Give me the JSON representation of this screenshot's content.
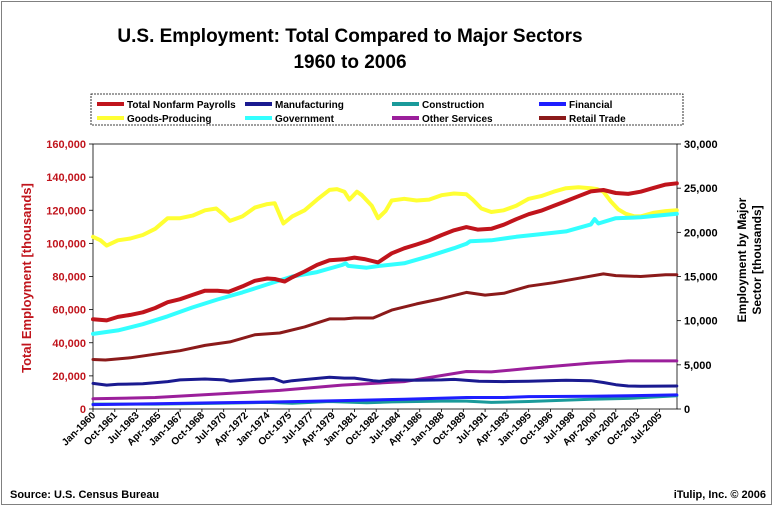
{
  "chart_data": {
    "type": "line",
    "title_line1": "U.S. Employment: Total Compared to Major Sectors",
    "title_line2": "1960 to 2006",
    "ylabel_left": "Total Employment [thousands]",
    "ylabel_right_line1": "Employment by Major",
    "ylabel_right_line2": "Sector [thousands]",
    "ylim_left": [
      0,
      160000
    ],
    "ylim_right": [
      0,
      30000
    ],
    "yticks_left": [
      "0",
      "20,000",
      "40,000",
      "60,000",
      "80,000",
      "100,000",
      "120,000",
      "140,000",
      "160,000"
    ],
    "yticks_right": [
      "0",
      "5,000",
      "10,000",
      "15,000",
      "20,000",
      "25,000",
      "30,000"
    ],
    "x_range": [
      "1960-01",
      "2006-12"
    ],
    "x_tick_labels": [
      "Jan-1960",
      "Oct-1961",
      "Jul-1963",
      "Apr-1965",
      "Jan-1967",
      "Oct-1968",
      "Jul-1970",
      "Apr-1972",
      "Jan-1974",
      "Oct-1975",
      "Jul-1977",
      "Apr-1979",
      "Jan-1981",
      "Oct-1982",
      "Jul-1984",
      "Apr-1986",
      "Jan-1988",
      "Oct-1989",
      "Jul-1991",
      "Apr-1993",
      "Jan-1995",
      "Oct-1996",
      "Jul-1998",
      "Apr-2000",
      "Jan-2002",
      "Oct-2003",
      "Jul-2005"
    ],
    "legend_placement": "top",
    "grid": false,
    "source": "Source: U.S. Census Bureau",
    "credit": "iTulip, Inc. © 2006",
    "series": [
      {
        "name": "Total Nonfarm Payrolls",
        "axis": "left",
        "color": "#c0141c",
        "width": 4,
        "x": [
          1960.0,
          1961.1,
          1962.0,
          1963.0,
          1964.0,
          1965.0,
          1966.0,
          1967.0,
          1968.0,
          1969.0,
          1970.0,
          1970.9,
          1972.0,
          1973.0,
          1974.0,
          1974.6,
          1975.4,
          1976.0,
          1977.0,
          1978.0,
          1979.0,
          1980.2,
          1981.0,
          1981.8,
          1982.9,
          1984.0,
          1985.0,
          1986.0,
          1987.0,
          1988.0,
          1989.0,
          1990.0,
          1990.9,
          1992.0,
          1993.0,
          1994.0,
          1995.0,
          1996.0,
          1997.0,
          1998.0,
          1999.0,
          2000.0,
          2001.0,
          2002.0,
          2003.0,
          2004.0,
          2005.0,
          2006.0,
          2006.9
        ],
        "y": [
          54200,
          53500,
          55600,
          56800,
          58400,
          61000,
          64500,
          66300,
          68900,
          71400,
          71400,
          70800,
          74000,
          77400,
          78800,
          78500,
          77000,
          79500,
          83000,
          87000,
          89800,
          90400,
          91400,
          90500,
          88500,
          94000,
          97000,
          99300,
          101800,
          105000,
          107900,
          109800,
          108300,
          108800,
          111300,
          114600,
          117600,
          119700,
          122600,
          125500,
          128500,
          131400,
          132200,
          130400,
          129900,
          131200,
          133400,
          135500,
          136300
        ]
      },
      {
        "name": "Goods-Producing",
        "axis": "right",
        "color": "#ffff33",
        "width": 4,
        "x": [
          1960.0,
          1960.6,
          1961.1,
          1962.0,
          1963.0,
          1964.0,
          1965.0,
          1966.0,
          1967.0,
          1968.0,
          1969.0,
          1969.9,
          1970.5,
          1971.0,
          1972.0,
          1973.0,
          1974.0,
          1974.6,
          1975.3,
          1976.0,
          1977.0,
          1978.0,
          1979.0,
          1979.6,
          1980.2,
          1980.6,
          1981.2,
          1981.6,
          1982.4,
          1982.9,
          1983.5,
          1984.0,
          1985.0,
          1986.0,
          1987.0,
          1988.0,
          1989.0,
          1990.0,
          1990.5,
          1991.2,
          1992.0,
          1993.0,
          1994.0,
          1995.0,
          1996.0,
          1997.0,
          1998.0,
          1999.0,
          2000.0,
          2000.5,
          2001.0,
          2001.6,
          2002.2,
          2002.8,
          2003.5,
          2004.0,
          2005.0,
          2006.0,
          2006.9
        ],
        "y": [
          19500,
          19100,
          18500,
          19100,
          19300,
          19700,
          20400,
          21600,
          21600,
          21900,
          22500,
          22700,
          22000,
          21300,
          21800,
          22800,
          23200,
          23300,
          21000,
          21800,
          22500,
          23700,
          24800,
          24900,
          24600,
          23700,
          24600,
          24200,
          23000,
          21600,
          22400,
          23600,
          23800,
          23600,
          23700,
          24200,
          24400,
          24300,
          23700,
          22700,
          22300,
          22500,
          23000,
          23800,
          24100,
          24600,
          25000,
          25100,
          25000,
          24900,
          24600,
          23500,
          22600,
          22100,
          21800,
          21800,
          22200,
          22400,
          22500
        ]
      },
      {
        "name": "Manufacturing",
        "axis": "right",
        "color": "#1a1a90",
        "width": 3,
        "x": [
          1960.0,
          1961.1,
          1962.0,
          1964.0,
          1966.0,
          1967.0,
          1969.0,
          1970.5,
          1971.0,
          1973.0,
          1974.5,
          1975.3,
          1976.0,
          1979.0,
          1980.2,
          1981.0,
          1982.5,
          1983.0,
          1984.0,
          1986.0,
          1988.0,
          1989.0,
          1991.0,
          1993.0,
          1995.0,
          1998.0,
          2000.0,
          2001.0,
          2002.0,
          2003.0,
          2004.0,
          2006.9
        ],
        "y": [
          2900,
          2700,
          2800,
          2850,
          3100,
          3300,
          3400,
          3300,
          3150,
          3350,
          3450,
          3050,
          3200,
          3600,
          3500,
          3500,
          3200,
          3150,
          3300,
          3250,
          3300,
          3350,
          3150,
          3100,
          3150,
          3250,
          3200,
          3000,
          2750,
          2600,
          2580,
          2600
        ]
      },
      {
        "name": "Government",
        "axis": "right",
        "color": "#33ffff",
        "width": 4,
        "x": [
          1960.0,
          1962.0,
          1964.0,
          1966.0,
          1968.0,
          1970.0,
          1972.0,
          1974.0,
          1976.0,
          1978.0,
          1980.0,
          1980.3,
          1980.5,
          1982.0,
          1983.0,
          1985.0,
          1987.0,
          1989.0,
          1990.0,
          1990.3,
          1992.0,
          1994.0,
          1996.0,
          1998.0,
          1999.5,
          2000.0,
          2000.3,
          2000.6,
          2002.0,
          2004.0,
          2006.9
        ],
        "y": [
          8500,
          8900,
          9600,
          10500,
          11500,
          12400,
          13200,
          14100,
          15000,
          15500,
          16300,
          16500,
          16200,
          16000,
          16200,
          16500,
          17300,
          18200,
          18700,
          19000,
          19100,
          19500,
          19800,
          20100,
          20700,
          20900,
          21500,
          21000,
          21600,
          21700,
          22100
        ]
      },
      {
        "name": "Retail Trade",
        "axis": "right",
        "color": "#8b1a1a",
        "width": 3,
        "x": [
          1960.0,
          1961.0,
          1963.0,
          1965.0,
          1967.0,
          1969.0,
          1971.0,
          1973.0,
          1975.0,
          1977.0,
          1979.0,
          1980.2,
          1981.0,
          1982.5,
          1984.0,
          1986.0,
          1988.0,
          1990.0,
          1991.5,
          1993.0,
          1995.0,
          1997.0,
          1999.0,
          2001.0,
          2002.0,
          2004.0,
          2006.0,
          2006.9
        ],
        "y": [
          5600,
          5550,
          5800,
          6200,
          6600,
          7200,
          7600,
          8400,
          8600,
          9300,
          10200,
          10200,
          10300,
          10300,
          11200,
          11900,
          12500,
          13200,
          12900,
          13100,
          13900,
          14300,
          14800,
          15300,
          15100,
          15000,
          15200,
          15200
        ]
      },
      {
        "name": "Other Services",
        "axis": "right",
        "color": "#9b1f9b",
        "width": 3,
        "x": [
          1960.0,
          1965.0,
          1970.0,
          1975.0,
          1980.0,
          1985.0,
          1990.0,
          1992.0,
          1995.0,
          2000.0,
          2003.0,
          2006.9
        ],
        "y": [
          1150,
          1300,
          1700,
          2100,
          2700,
          3100,
          4250,
          4200,
          4600,
          5200,
          5450,
          5450
        ]
      },
      {
        "name": "Construction",
        "axis": "right",
        "color": "#1a9a9a",
        "width": 3,
        "x": [
          1960.0,
          1965.0,
          1970.0,
          1974.0,
          1976.0,
          1979.0,
          1982.0,
          1984.0,
          1988.0,
          1990.0,
          1992.0,
          1995.0,
          2000.0,
          2003.0,
          2006.9
        ],
        "y": [
          550,
          560,
          650,
          750,
          650,
          850,
          700,
          800,
          900,
          900,
          750,
          850,
          1100,
          1200,
          1500
        ]
      },
      {
        "name": "Financial",
        "axis": "right",
        "color": "#1e1eff",
        "width": 3,
        "x": [
          1960.0,
          1965.0,
          1970.0,
          1975.0,
          1980.0,
          1985.0,
          1990.0,
          1993.0,
          1995.0,
          2000.0,
          2003.0,
          2006.9
        ],
        "y": [
          500,
          600,
          700,
          800,
          950,
          1100,
          1300,
          1300,
          1400,
          1450,
          1500,
          1600
        ]
      }
    ]
  }
}
